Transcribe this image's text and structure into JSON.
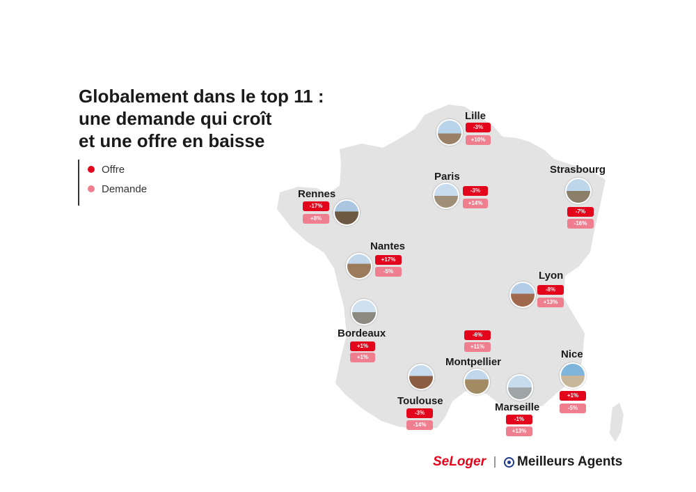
{
  "title_lines": [
    "Globalement dans le top 11 :",
    "une demande qui croît",
    "et une offre en baisse"
  ],
  "legend": [
    {
      "label": "Offre",
      "color": "#e3051b"
    },
    {
      "label": "Demande",
      "color": "#ef7f8f"
    }
  ],
  "colors": {
    "offre": "#e3051b",
    "demande": "#ef7f8f",
    "map_fill": "#e3e3e3"
  },
  "cities": [
    {
      "name": "Lille",
      "offre": "-3%",
      "demande": "+10%"
    },
    {
      "name": "Paris",
      "offre": "-3%",
      "demande": "+14%"
    },
    {
      "name": "Strasbourg",
      "offre": "-7%",
      "demande": "-16%"
    },
    {
      "name": "Rennes",
      "offre": "-17%",
      "demande": "+8%"
    },
    {
      "name": "Nantes",
      "offre": "+17%",
      "demande": "-5%"
    },
    {
      "name": "Lyon",
      "offre": "-8%",
      "demande": "+13%"
    },
    {
      "name": "Bordeaux",
      "offre": "+1%",
      "demande": "+1%"
    },
    {
      "name": "Montpellier",
      "offre": "-6%",
      "demande": "+11%"
    },
    {
      "name": "Nice",
      "offre": "+1%",
      "demande": "-5%"
    },
    {
      "name": "Toulouse",
      "offre": "-3%",
      "demande": "-14%"
    },
    {
      "name": "Marseille",
      "offre": "-1%",
      "demande": "+13%"
    }
  ],
  "footer": {
    "brand1": "SeLoger",
    "brand2": "Meilleurs Agents"
  }
}
